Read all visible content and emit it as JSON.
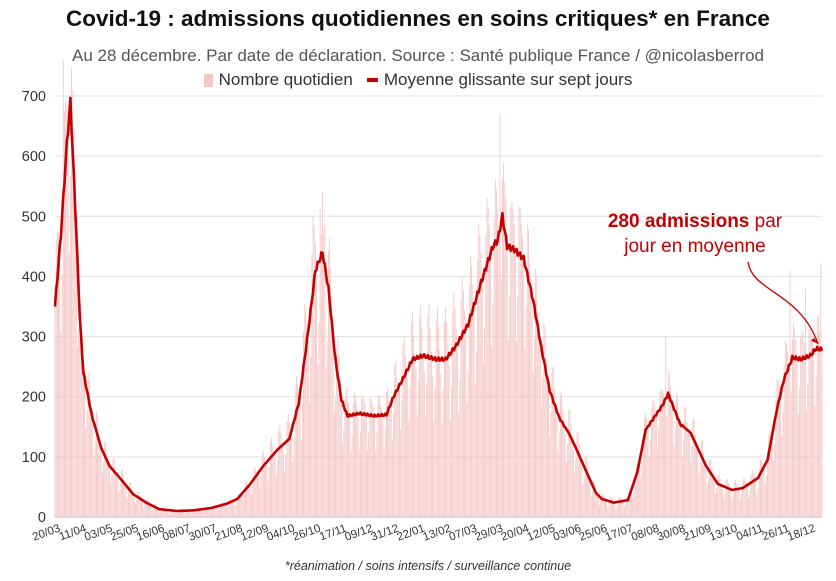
{
  "chart_data": {
    "type": "bar+line",
    "title": "Covid-19 : admissions quotidiennes en soins critiques* en France",
    "subtitle": "Au 28 décembre. Par date de déclaration. Source : Santé publique France / @nicolasberrod",
    "footnote": "*réanimation / soins intensifs / surveillance continue",
    "legend": [
      {
        "name": "Nombre quotidien",
        "color": "#f4c6c6",
        "kind": "bar"
      },
      {
        "name": "Moyenne glissante sur sept jours",
        "color": "#c40000",
        "kind": "line"
      }
    ],
    "legend_position": "top-center",
    "grid": true,
    "ylim": [
      0,
      700
    ],
    "yticks": [
      0,
      100,
      200,
      300,
      400,
      500,
      600,
      700
    ],
    "x_start": "2020-03-20",
    "x_end": "2021-12-28",
    "xtick_labels": [
      {
        "date": "2020-03-20",
        "label": "20/03"
      },
      {
        "date": "2020-04-11",
        "label": "11/04"
      },
      {
        "date": "2020-05-03",
        "label": "03/05"
      },
      {
        "date": "2020-05-25",
        "label": "25/05"
      },
      {
        "date": "2020-06-16",
        "label": "16/06"
      },
      {
        "date": "2020-07-08",
        "label": "08/07"
      },
      {
        "date": "2020-07-30",
        "label": "30/07"
      },
      {
        "date": "2020-08-21",
        "label": "21/08"
      },
      {
        "date": "2020-09-12",
        "label": "12/09"
      },
      {
        "date": "2020-10-04",
        "label": "04/10"
      },
      {
        "date": "2020-10-26",
        "label": "26/10"
      },
      {
        "date": "2020-11-17",
        "label": "17/11"
      },
      {
        "date": "2020-12-09",
        "label": "09/12"
      },
      {
        "date": "2020-12-31",
        "label": "31/12"
      },
      {
        "date": "2021-01-22",
        "label": "22/01"
      },
      {
        "date": "2021-02-13",
        "label": "13/02"
      },
      {
        "date": "2021-03-07",
        "label": "07/03"
      },
      {
        "date": "2021-03-29",
        "label": "29/03"
      },
      {
        "date": "2021-04-20",
        "label": "20/04"
      },
      {
        "date": "2021-05-12",
        "label": "12/05"
      },
      {
        "date": "2021-06-03",
        "label": "03/06"
      },
      {
        "date": "2021-06-25",
        "label": "25/06"
      },
      {
        "date": "2021-07-17",
        "label": "17/07"
      },
      {
        "date": "2021-08-08",
        "label": "08/08"
      },
      {
        "date": "2021-08-30",
        "label": "30/08"
      },
      {
        "date": "2021-09-21",
        "label": "21/09"
      },
      {
        "date": "2021-10-13",
        "label": "13/10"
      },
      {
        "date": "2021-11-04",
        "label": "04/11"
      },
      {
        "date": "2021-11-26",
        "label": "26/11"
      },
      {
        "date": "2021-12-18",
        "label": "18/12"
      }
    ],
    "moving_average": [
      {
        "date": "2020-03-20",
        "value": 350
      },
      {
        "date": "2020-03-25",
        "value": 470
      },
      {
        "date": "2020-03-30",
        "value": 620
      },
      {
        "date": "2020-04-02",
        "value": 690
      },
      {
        "date": "2020-04-06",
        "value": 520
      },
      {
        "date": "2020-04-10",
        "value": 330
      },
      {
        "date": "2020-04-13",
        "value": 240
      },
      {
        "date": "2020-04-20",
        "value": 170
      },
      {
        "date": "2020-04-28",
        "value": 115
      },
      {
        "date": "2020-05-05",
        "value": 85
      },
      {
        "date": "2020-05-15",
        "value": 62
      },
      {
        "date": "2020-05-25",
        "value": 38
      },
      {
        "date": "2020-06-05",
        "value": 24
      },
      {
        "date": "2020-06-16",
        "value": 13
      },
      {
        "date": "2020-07-01",
        "value": 10
      },
      {
        "date": "2020-07-15",
        "value": 11
      },
      {
        "date": "2020-07-30",
        "value": 15
      },
      {
        "date": "2020-08-12",
        "value": 22
      },
      {
        "date": "2020-08-21",
        "value": 30
      },
      {
        "date": "2020-09-01",
        "value": 55
      },
      {
        "date": "2020-09-12",
        "value": 85
      },
      {
        "date": "2020-09-24",
        "value": 112
      },
      {
        "date": "2020-10-04",
        "value": 130
      },
      {
        "date": "2020-10-12",
        "value": 190
      },
      {
        "date": "2020-10-20",
        "value": 310
      },
      {
        "date": "2020-10-26",
        "value": 410
      },
      {
        "date": "2020-11-01",
        "value": 440
      },
      {
        "date": "2020-11-06",
        "value": 380
      },
      {
        "date": "2020-11-12",
        "value": 260
      },
      {
        "date": "2020-11-17",
        "value": 195
      },
      {
        "date": "2020-11-22",
        "value": 168
      },
      {
        "date": "2020-12-02",
        "value": 172
      },
      {
        "date": "2020-12-15",
        "value": 168
      },
      {
        "date": "2020-12-25",
        "value": 170
      },
      {
        "date": "2020-12-31",
        "value": 200
      },
      {
        "date": "2021-01-08",
        "value": 230
      },
      {
        "date": "2021-01-16",
        "value": 262
      },
      {
        "date": "2021-01-25",
        "value": 268
      },
      {
        "date": "2021-02-05",
        "value": 262
      },
      {
        "date": "2021-02-13",
        "value": 262
      },
      {
        "date": "2021-02-22",
        "value": 285
      },
      {
        "date": "2021-03-04",
        "value": 320
      },
      {
        "date": "2021-03-15",
        "value": 390
      },
      {
        "date": "2021-03-25",
        "value": 450
      },
      {
        "date": "2021-03-29",
        "value": 460
      },
      {
        "date": "2021-04-02",
        "value": 500
      },
      {
        "date": "2021-04-06",
        "value": 450
      },
      {
        "date": "2021-04-12",
        "value": 445
      },
      {
        "date": "2021-04-20",
        "value": 430
      },
      {
        "date": "2021-04-28",
        "value": 360
      },
      {
        "date": "2021-05-05",
        "value": 280
      },
      {
        "date": "2021-05-12",
        "value": 210
      },
      {
        "date": "2021-05-20",
        "value": 165
      },
      {
        "date": "2021-05-28",
        "value": 140
      },
      {
        "date": "2021-06-03",
        "value": 115
      },
      {
        "date": "2021-06-12",
        "value": 75
      },
      {
        "date": "2021-06-20",
        "value": 40
      },
      {
        "date": "2021-06-25",
        "value": 30
      },
      {
        "date": "2021-07-05",
        "value": 24
      },
      {
        "date": "2021-07-17",
        "value": 28
      },
      {
        "date": "2021-07-25",
        "value": 75
      },
      {
        "date": "2021-08-01",
        "value": 145
      },
      {
        "date": "2021-08-08",
        "value": 165
      },
      {
        "date": "2021-08-15",
        "value": 185
      },
      {
        "date": "2021-08-20",
        "value": 205
      },
      {
        "date": "2021-08-26",
        "value": 175
      },
      {
        "date": "2021-08-30",
        "value": 155
      },
      {
        "date": "2021-09-08",
        "value": 140
      },
      {
        "date": "2021-09-21",
        "value": 85
      },
      {
        "date": "2021-10-01",
        "value": 55
      },
      {
        "date": "2021-10-13",
        "value": 45
      },
      {
        "date": "2021-10-22",
        "value": 48
      },
      {
        "date": "2021-11-04",
        "value": 65
      },
      {
        "date": "2021-11-12",
        "value": 95
      },
      {
        "date": "2021-11-20",
        "value": 180
      },
      {
        "date": "2021-11-26",
        "value": 230
      },
      {
        "date": "2021-12-03",
        "value": 265
      },
      {
        "date": "2021-12-10",
        "value": 262
      },
      {
        "date": "2021-12-18",
        "value": 268
      },
      {
        "date": "2021-12-23",
        "value": 280
      },
      {
        "date": "2021-12-28",
        "value": 278
      }
    ],
    "daily_peaks": [
      {
        "date": "2020-03-27",
        "value": 760
      },
      {
        "date": "2020-10-31",
        "value": 470
      },
      {
        "date": "2020-11-03",
        "value": 490
      },
      {
        "date": "2021-03-31",
        "value": 670
      },
      {
        "date": "2021-04-05",
        "value": 530
      },
      {
        "date": "2021-08-18",
        "value": 300
      },
      {
        "date": "2021-12-01",
        "value": 410
      },
      {
        "date": "2021-12-14",
        "value": 380
      },
      {
        "date": "2021-12-27",
        "value": 420
      }
    ],
    "annotation": {
      "bold": "280 admissions",
      "rest": " par",
      "line2": "jour en moyenne",
      "color": "#c40000"
    },
    "colors": {
      "bar": "#f4c6c6",
      "line": "#c40000",
      "grid": "#e0e0e0",
      "axis_text": "#333333"
    }
  }
}
